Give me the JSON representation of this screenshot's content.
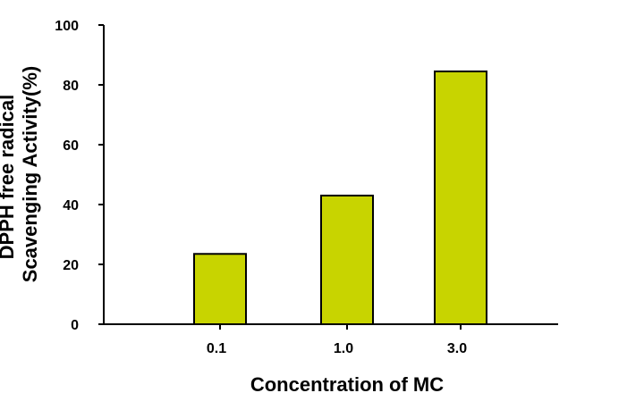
{
  "chart_data": {
    "type": "bar",
    "title": "",
    "xlabel": "Concentration of MC",
    "ylabel_lines": [
      "DPPH free radical",
      "Scavenging Activity(%)"
    ],
    "categories": [
      "0.1",
      "1.0",
      "3.0"
    ],
    "values": [
      23.5,
      43,
      84.5
    ],
    "ylim": [
      0,
      100
    ],
    "yticks": [
      0,
      20,
      40,
      60,
      80,
      100
    ],
    "grid": false,
    "legend": "none",
    "bar_color": "#c8d400",
    "bar_edge_color": "#000000"
  }
}
